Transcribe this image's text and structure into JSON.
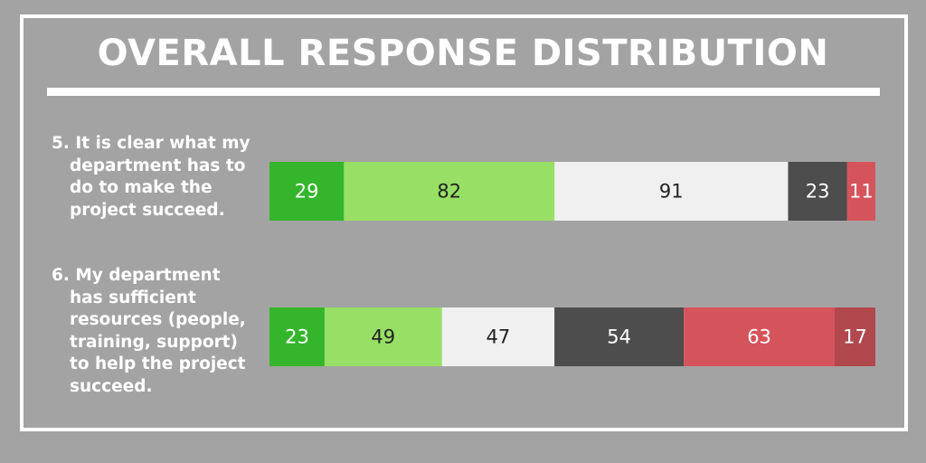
{
  "chart_data": {
    "type": "bar",
    "orientation": "horizontal",
    "stacked": true,
    "title": "OVERALL RESPONSE DISTRIBUTION",
    "categories": [
      "5. It is clear what my department has to do to make the project succeed.",
      "6. My department has sufficient resources (people, training, support) to help the project succeed."
    ],
    "series": [
      {
        "color": "#35b52c",
        "values": [
          29,
          23
        ]
      },
      {
        "color": "#98e065",
        "values": [
          82,
          49
        ]
      },
      {
        "color": "#f0f0f0",
        "values": [
          91,
          47
        ]
      },
      {
        "color": "#4d4d4d",
        "values": [
          23,
          54
        ]
      },
      {
        "color": "#d5545c",
        "values": [
          11,
          63
        ]
      },
      {
        "color": "#b0484e",
        "values": [
          null,
          17
        ]
      }
    ]
  }
}
